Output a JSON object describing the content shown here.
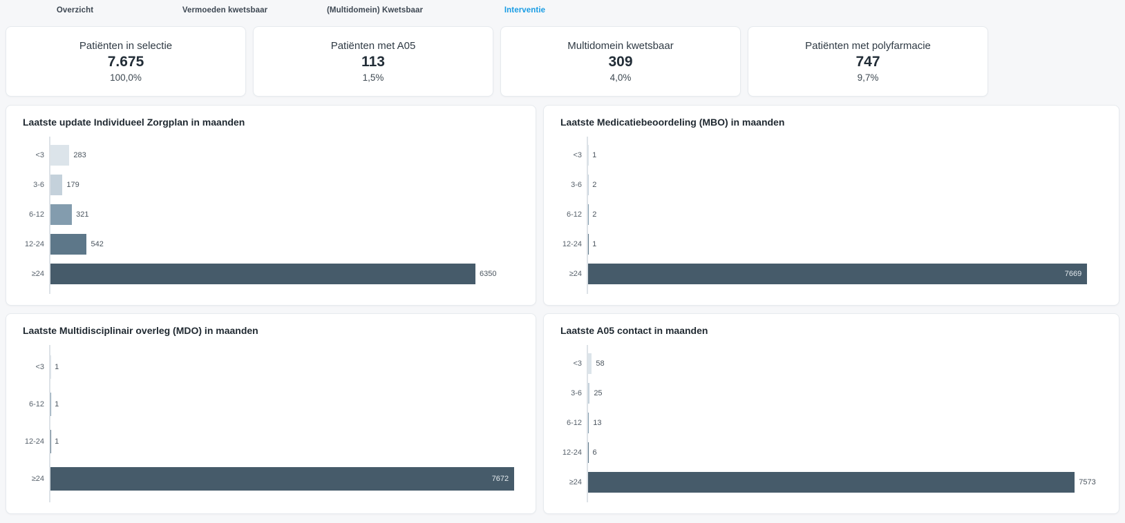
{
  "tabs": [
    {
      "label": "Overzicht",
      "active": false
    },
    {
      "label": "Vermoeden kwetsbaar",
      "active": false
    },
    {
      "label": "(Multidomein) Kwetsbaar",
      "active": false
    },
    {
      "label": "Interventie",
      "active": true
    }
  ],
  "accent_color": "#189ce4",
  "kpis": [
    {
      "label": "Patiënten in selectie",
      "value": "7.675",
      "pct": "100,0%"
    },
    {
      "label": "Patiënten met A05",
      "value": "113",
      "pct": "1,5%"
    },
    {
      "label": "Multidomein kwetsbaar",
      "value": "309",
      "pct": "4,0%"
    },
    {
      "label": "Patiënten met polyfarmacie",
      "value": "747",
      "pct": "9,7%"
    }
  ],
  "bar_colors": {
    "<3": "#dce4ea",
    "3-6": "#c4d1db",
    "6-12": "#839cae",
    "12-24": "#5d7789",
    "≥24": "#465b6a"
  },
  "chart_data": [
    {
      "type": "bar",
      "orientation": "horizontal",
      "title": "Laatste update Individueel Zorgplan in maanden",
      "categories": [
        "<3",
        "3-6",
        "6-12",
        "12-24",
        "≥24"
      ],
      "values": [
        283,
        179,
        321,
        542,
        6350
      ],
      "xmax": 7000,
      "grid": false,
      "legend": false
    },
    {
      "type": "bar",
      "orientation": "horizontal",
      "title": "Laatste Medicatiebeoordeling (MBO) in maanden",
      "categories": [
        "<3",
        "3-6",
        "6-12",
        "12-24",
        "≥24"
      ],
      "values": [
        1,
        2,
        2,
        1,
        7669
      ],
      "xmax": 7900,
      "grid": false,
      "legend": false
    },
    {
      "type": "bar",
      "orientation": "horizontal",
      "title": "Laatste Multidisciplinair overleg (MDO) in maanden",
      "categories": [
        "<3",
        "6-12",
        "12-24",
        "≥24"
      ],
      "values": [
        1,
        1,
        1,
        7672
      ],
      "xmax": 7750,
      "grid": false,
      "legend": false
    },
    {
      "type": "bar",
      "orientation": "horizontal",
      "title": "Laatste A05 contact in maanden",
      "categories": [
        "<3",
        "3-6",
        "6-12",
        "12-24",
        "≥24"
      ],
      "values": [
        58,
        25,
        13,
        6,
        7573
      ],
      "xmax": 8000,
      "grid": false,
      "legend": false
    }
  ]
}
